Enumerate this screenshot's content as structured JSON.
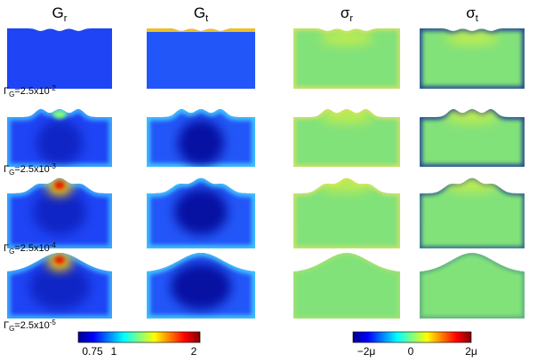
{
  "columns": [
    {
      "symbol": "G",
      "sub": "r"
    },
    {
      "symbol": "G",
      "sub": "t"
    },
    {
      "symbol": "σ",
      "sub": "r"
    },
    {
      "symbol": "σ",
      "sub": "t"
    }
  ],
  "rows": [
    {
      "symbol": "Γ",
      "sub": "G",
      "text": "=2.5x10",
      "exp": "-2"
    },
    {
      "symbol": "Γ",
      "sub": "G",
      "text": "=2.5x10",
      "exp": "-3"
    },
    {
      "symbol": "Γ",
      "sub": "G",
      "text": "=2.5x10",
      "exp": "-4"
    },
    {
      "symbol": "Γ",
      "sub": "G",
      "text": "=2.5x10",
      "exp": "-5"
    }
  ],
  "colorbars": [
    {
      "labels": [
        "0.75",
        "1",
        "2"
      ]
    },
    {
      "labels": [
        "−2μ",
        "0",
        "2μ"
      ]
    }
  ]
}
